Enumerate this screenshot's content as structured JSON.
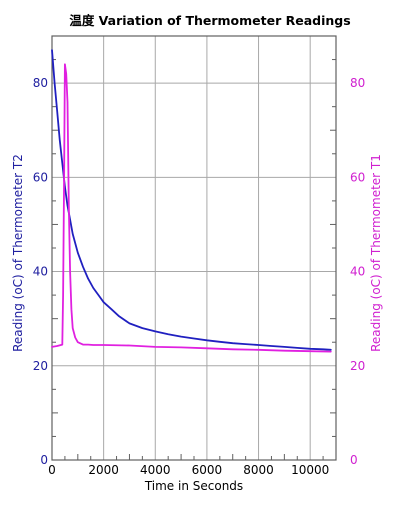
{
  "chart_data": {
    "type": "line",
    "title": "温度 Variation of Thermometer Readings",
    "xlabel": "Time in Seconds",
    "ylabel_left": "Reading (oC) of Thermometer T2",
    "ylabel_right": "Reading (oC) of Thermometer T1",
    "xlim": [
      0,
      11000
    ],
    "ylim_left": [
      0,
      90
    ],
    "ylim_right": [
      0,
      90
    ],
    "x_ticks": [
      0,
      2000,
      4000,
      6000,
      8000,
      10000
    ],
    "y_ticks_left": [
      0,
      20,
      40,
      60,
      80
    ],
    "y_ticks_right": [
      0,
      20,
      40,
      60,
      80
    ],
    "grid": true,
    "series": [
      {
        "name": "Reading (oC) of Thermometer T2",
        "axis": "left",
        "color": "#2020c0",
        "x": [
          0,
          100,
          200,
          300,
          400,
          500,
          600,
          700,
          800,
          1000,
          1200,
          1400,
          1600,
          1800,
          2000,
          2300,
          2600,
          3000,
          3500,
          4000,
          4500,
          5000,
          5500,
          6000,
          6500,
          7000,
          7500,
          8000,
          8500,
          9000,
          9500,
          10000,
          10500,
          10800
        ],
        "values": [
          87,
          80,
          74,
          68,
          63,
          58,
          54,
          51,
          48,
          44,
          41,
          38.5,
          36.5,
          35,
          33.5,
          32,
          30.5,
          29,
          28,
          27.3,
          26.7,
          26.2,
          25.8,
          25.4,
          25.1,
          24.8,
          24.6,
          24.4,
          24.2,
          24.0,
          23.8,
          23.6,
          23.5,
          23.4
        ]
      },
      {
        "name": "Reading (oC) of Thermometer T1",
        "axis": "right",
        "color": "#e020e0",
        "x": [
          0,
          200,
          400,
          430,
          470,
          500,
          550,
          600,
          650,
          700,
          750,
          800,
          900,
          1000,
          1200,
          1400,
          1600,
          2000,
          3000,
          4000,
          5000,
          6000,
          7000,
          8000,
          9000,
          10000,
          10800
        ],
        "values": [
          24,
          24.2,
          24.5,
          35,
          60,
          84,
          82,
          76,
          54,
          40,
          32,
          28,
          26,
          25,
          24.5,
          24.5,
          24.4,
          24.4,
          24.3,
          24.0,
          23.9,
          23.7,
          23.5,
          23.4,
          23.2,
          23.1,
          23.0
        ]
      }
    ]
  },
  "colors": {
    "left_axis": "#2020a0",
    "right_axis": "#d020d0",
    "bottom_axis": "#000000"
  }
}
